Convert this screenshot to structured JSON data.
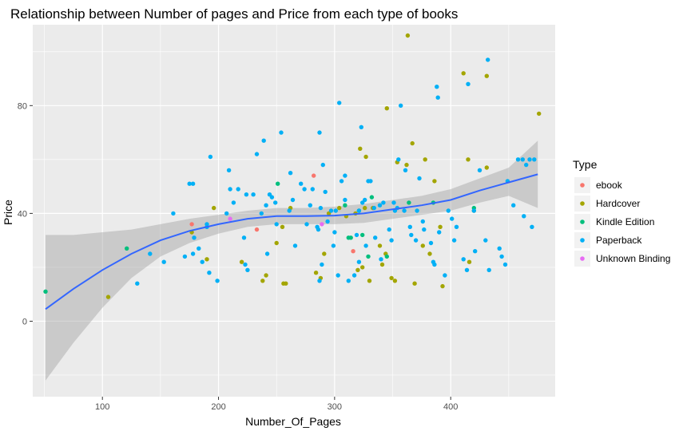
{
  "chart_data": {
    "type": "scatter",
    "title": "Relationship between Number of pages and Price from each type of books",
    "xlabel": "Number_Of_Pages",
    "ylabel": "Price",
    "xlim": [
      40,
      490
    ],
    "ylim": [
      -28,
      110
    ],
    "xticks": [
      100,
      200,
      300,
      400
    ],
    "yticks": [
      0,
      40,
      80
    ],
    "grid": true,
    "background": "#ebebeb",
    "legend": {
      "title": "Type",
      "position": "right"
    },
    "series": [
      {
        "name": "ebook",
        "color": "#F8766D",
        "points": [
          [
            177,
            36
          ],
          [
            233,
            34
          ],
          [
            282,
            54
          ],
          [
            316,
            26
          ],
          [
            333,
            42
          ]
        ]
      },
      {
        "name": "Hardcover",
        "color": "#A3A500",
        "points": [
          [
            105,
            9
          ],
          [
            177,
            33
          ],
          [
            190,
            23
          ],
          [
            196,
            42
          ],
          [
            220,
            22
          ],
          [
            238,
            15
          ],
          [
            241,
            17
          ],
          [
            250,
            29
          ],
          [
            255,
            35
          ],
          [
            256,
            14
          ],
          [
            258,
            14
          ],
          [
            262,
            42
          ],
          [
            284,
            18
          ],
          [
            288,
            16
          ],
          [
            291,
            25
          ],
          [
            295,
            40
          ],
          [
            304,
            42
          ],
          [
            310,
            39
          ],
          [
            318,
            40
          ],
          [
            320,
            19
          ],
          [
            322,
            64
          ],
          [
            324,
            20
          ],
          [
            326,
            42
          ],
          [
            327,
            61
          ],
          [
            330,
            15
          ],
          [
            333,
            42
          ],
          [
            339,
            28
          ],
          [
            341,
            21
          ],
          [
            344,
            25
          ],
          [
            345,
            79
          ],
          [
            349,
            16
          ],
          [
            352,
            15
          ],
          [
            354,
            59
          ],
          [
            362,
            58
          ],
          [
            363,
            106
          ],
          [
            367,
            66
          ],
          [
            369,
            14
          ],
          [
            376,
            28
          ],
          [
            378,
            60
          ],
          [
            382,
            25
          ],
          [
            386,
            52
          ],
          [
            391,
            35
          ],
          [
            393,
            13
          ],
          [
            411,
            92
          ],
          [
            415,
            60
          ],
          [
            416,
            22
          ],
          [
            420,
            41
          ],
          [
            431,
            91
          ],
          [
            431,
            57
          ],
          [
            476,
            77
          ]
        ]
      },
      {
        "name": "Kindle Edition",
        "color": "#00BF7D",
        "points": [
          [
            51,
            11
          ],
          [
            121,
            27
          ],
          [
            251,
            51
          ],
          [
            309,
            43
          ],
          [
            312,
            31
          ],
          [
            314,
            31
          ],
          [
            321,
            41
          ],
          [
            324,
            32
          ],
          [
            329,
            24
          ],
          [
            332,
            46
          ],
          [
            345,
            24
          ],
          [
            364,
            44
          ],
          [
            385,
            44
          ],
          [
            420,
            42
          ]
        ]
      },
      {
        "name": "Paperback",
        "color": "#00B0F6",
        "points": [
          [
            130,
            14
          ],
          [
            141,
            25
          ],
          [
            153,
            22
          ],
          [
            161,
            40
          ],
          [
            171,
            24
          ],
          [
            175,
            51
          ],
          [
            178,
            51
          ],
          [
            178,
            25
          ],
          [
            179,
            31
          ],
          [
            183,
            27
          ],
          [
            186,
            22
          ],
          [
            190,
            36
          ],
          [
            190,
            35
          ],
          [
            192,
            18
          ],
          [
            193,
            61
          ],
          [
            199,
            15
          ],
          [
            207,
            40
          ],
          [
            209,
            56
          ],
          [
            210,
            49
          ],
          [
            213,
            44
          ],
          [
            217,
            49
          ],
          [
            222,
            31
          ],
          [
            223,
            21
          ],
          [
            224,
            47
          ],
          [
            225,
            19
          ],
          [
            230,
            47
          ],
          [
            233,
            62
          ],
          [
            237,
            40
          ],
          [
            239,
            67
          ],
          [
            241,
            43
          ],
          [
            242,
            25
          ],
          [
            244,
            47
          ],
          [
            246,
            46
          ],
          [
            249,
            44
          ],
          [
            250,
            36
          ],
          [
            254,
            70
          ],
          [
            261,
            41
          ],
          [
            262,
            55
          ],
          [
            264,
            45
          ],
          [
            266,
            28
          ],
          [
            271,
            51
          ],
          [
            274,
            49
          ],
          [
            276,
            36
          ],
          [
            279,
            43
          ],
          [
            281,
            49
          ],
          [
            285,
            35
          ],
          [
            286,
            34
          ],
          [
            287,
            15
          ],
          [
            287,
            70
          ],
          [
            288,
            42
          ],
          [
            289,
            21
          ],
          [
            290,
            58
          ],
          [
            292,
            48
          ],
          [
            294,
            37
          ],
          [
            297,
            41
          ],
          [
            299,
            28
          ],
          [
            300,
            33
          ],
          [
            301,
            41
          ],
          [
            303,
            17
          ],
          [
            304,
            81
          ],
          [
            306,
            52
          ],
          [
            309,
            45
          ],
          [
            309,
            54
          ],
          [
            312,
            15
          ],
          [
            317,
            17
          ],
          [
            319,
            32
          ],
          [
            321,
            41
          ],
          [
            321,
            22
          ],
          [
            323,
            72
          ],
          [
            324,
            44
          ],
          [
            326,
            45
          ],
          [
            327,
            28
          ],
          [
            329,
            52
          ],
          [
            331,
            52
          ],
          [
            334,
            42
          ],
          [
            335,
            31
          ],
          [
            339,
            43
          ],
          [
            340,
            23
          ],
          [
            342,
            44
          ],
          [
            347,
            34
          ],
          [
            349,
            30
          ],
          [
            351,
            44
          ],
          [
            352,
            41
          ],
          [
            354,
            42
          ],
          [
            355,
            60
          ],
          [
            357,
            80
          ],
          [
            360,
            41
          ],
          [
            361,
            56
          ],
          [
            365,
            35
          ],
          [
            366,
            32
          ],
          [
            370,
            30
          ],
          [
            371,
            41
          ],
          [
            373,
            53
          ],
          [
            376,
            37
          ],
          [
            377,
            34
          ],
          [
            383,
            29
          ],
          [
            385,
            22
          ],
          [
            386,
            21
          ],
          [
            388,
            87
          ],
          [
            389,
            83
          ],
          [
            390,
            33
          ],
          [
            395,
            17
          ],
          [
            398,
            41
          ],
          [
            401,
            38
          ],
          [
            403,
            30
          ],
          [
            405,
            35
          ],
          [
            411,
            23
          ],
          [
            414,
            19
          ],
          [
            415,
            88
          ],
          [
            420,
            41
          ],
          [
            421,
            26
          ],
          [
            425,
            56
          ],
          [
            430,
            30
          ],
          [
            432,
            97
          ],
          [
            433,
            19
          ],
          [
            442,
            27
          ],
          [
            444,
            24
          ],
          [
            447,
            21
          ],
          [
            449,
            52
          ],
          [
            454,
            43
          ],
          [
            458,
            60
          ],
          [
            462,
            60
          ],
          [
            463,
            39
          ],
          [
            465,
            58
          ],
          [
            468,
            60
          ],
          [
            470,
            35
          ],
          [
            472,
            60
          ]
        ]
      },
      {
        "name": "Unknown Binding",
        "color": "#E76BF3",
        "points": [
          [
            210,
            38
          ],
          [
            289,
            36
          ]
        ]
      }
    ],
    "smooth": {
      "color": "#3366FF",
      "band_color": "#999999",
      "x": [
        51,
        75,
        100,
        125,
        150,
        175,
        200,
        225,
        250,
        275,
        300,
        325,
        350,
        375,
        400,
        425,
        450,
        475
      ],
      "y": [
        4.5,
        12,
        19,
        25,
        30,
        33.5,
        36,
        38,
        39,
        39,
        39.2,
        40,
        41.5,
        43,
        45,
        48.5,
        51.5,
        54.5
      ],
      "lower": [
        -22,
        -8,
        5,
        16,
        24,
        29,
        32.5,
        35,
        36,
        36,
        36,
        36.5,
        38,
        39.5,
        41,
        44,
        46.5,
        42
      ],
      "upper": [
        32,
        32,
        33,
        34,
        36,
        38,
        39.5,
        41,
        42,
        42,
        42.5,
        43.5,
        45,
        46.5,
        49,
        53,
        57,
        67
      ]
    }
  }
}
